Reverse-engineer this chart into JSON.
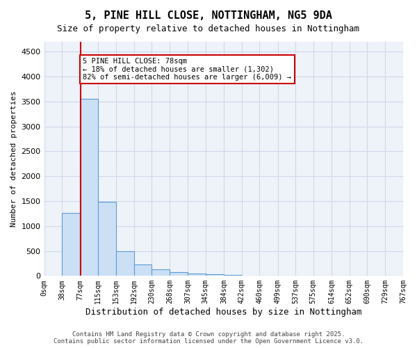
{
  "title_line1": "5, PINE HILL CLOSE, NOTTINGHAM, NG5 9DA",
  "title_line2": "Size of property relative to detached houses in Nottingham",
  "xlabel": "Distribution of detached houses by size in Nottingham",
  "ylabel": "Number of detached properties",
  "bar_edges": [
    0,
    38,
    77,
    115,
    153,
    192,
    230,
    268,
    307,
    345,
    384,
    422,
    460,
    499,
    537,
    575,
    614,
    652,
    690,
    729,
    767
  ],
  "bar_heights": [
    5,
    1260,
    3560,
    1480,
    500,
    225,
    135,
    75,
    50,
    30,
    20,
    10,
    5,
    3,
    2,
    1,
    0,
    0,
    0,
    0
  ],
  "bar_color": "#cce0f5",
  "bar_edge_color": "#5b9bd5",
  "grid_color": "#d0d8e8",
  "background_color": "#eef2f9",
  "property_size": 78,
  "red_line_color": "#cc0000",
  "annotation_text": "5 PINE HILL CLOSE: 78sqm\n← 18% of detached houses are smaller (1,302)\n82% of semi-detached houses are larger (6,009) →",
  "annotation_box_color": "#cc0000",
  "ylim": [
    0,
    4700
  ],
  "yticks": [
    0,
    500,
    1000,
    1500,
    2000,
    2500,
    3000,
    3500,
    4000,
    4500
  ],
  "footer_text": "Contains HM Land Registry data © Crown copyright and database right 2025.\nContains public sector information licensed under the Open Government Licence v3.0.",
  "tick_labels": [
    "0sqm",
    "38sqm",
    "77sqm",
    "115sqm",
    "153sqm",
    "192sqm",
    "230sqm",
    "268sqm",
    "307sqm",
    "345sqm",
    "384sqm",
    "422sqm",
    "460sqm",
    "499sqm",
    "537sqm",
    "575sqm",
    "614sqm",
    "652sqm",
    "690sqm",
    "729sqm",
    "767sqm"
  ]
}
